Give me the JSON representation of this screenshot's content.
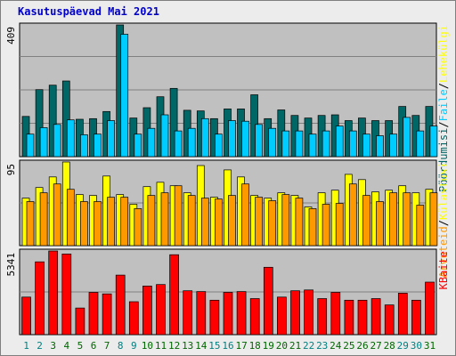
{
  "title": "Kasutuspäevad Mai 2021",
  "colors": {
    "pageviews": "#006666",
    "hits": "#00ccff",
    "visits": "#ffff00",
    "sites": "#ff9900",
    "kbytes": "#ff0000",
    "weekday_label": "#006600",
    "weekend_label": "#008080",
    "panel_bg": "#c0c0c0",
    "grid": "#808080"
  },
  "chart_data": [
    {
      "type": "bar",
      "id": "requests",
      "max_label": "409",
      "ylim": [
        0,
        409
      ],
      "series": [
        {
          "name": "Lehekülgi",
          "key": "pageviews",
          "values": [
            125,
            208,
            222,
            235,
            116,
            118,
            140,
            409,
            120,
            152,
            186,
            212,
            144,
            142,
            118,
            148,
            148,
            192,
            118,
            145,
            128,
            120,
            128,
            130,
            112,
            120,
            112,
            112,
            156,
            128,
            156
          ]
        },
        {
          "name": "Faile",
          "key": "hits",
          "values": [
            70,
            90,
            100,
            114,
            68,
            70,
            112,
            380,
            70,
            88,
            130,
            80,
            88,
            118,
            70,
            112,
            110,
            100,
            88,
            80,
            80,
            70,
            80,
            95,
            80,
            70,
            65,
            70,
            122,
            80,
            95
          ]
        }
      ],
      "legend": [
        {
          "text": "Pöördumisi",
          "key": "pageviews"
        },
        {
          "text": "/",
          "key": "sep"
        },
        {
          "text": "Faile",
          "key": "hits"
        },
        {
          "text": "/",
          "key": "sep"
        },
        {
          "text": "Lehekülgi",
          "key": "visits"
        }
      ]
    },
    {
      "type": "bar",
      "id": "visits",
      "max_label": "95",
      "ylim": [
        0,
        95
      ],
      "series": [
        {
          "name": "Külastusi",
          "key": "visits",
          "values": [
            54,
            66,
            78,
            95,
            58,
            57,
            79,
            58,
            47,
            67,
            72,
            68,
            60,
            91,
            55,
            86,
            78,
            57,
            54,
            60,
            57,
            44,
            60,
            63,
            81,
            75,
            61,
            63,
            68,
            60,
            64
          ]
        },
        {
          "name": "Arvuteid",
          "key": "sites",
          "values": [
            50,
            60,
            70,
            64,
            50,
            50,
            55,
            55,
            42,
            57,
            60,
            68,
            57,
            54,
            53,
            57,
            70,
            55,
            51,
            58,
            54,
            42,
            47,
            48,
            70,
            57,
            50,
            60,
            60,
            46,
            60
          ]
        }
      ],
      "legend": [
        {
          "text": "Arvuteid",
          "key": "sites"
        },
        {
          "text": "/",
          "key": "sep"
        },
        {
          "text": "Külastusi",
          "key": "visits"
        }
      ]
    },
    {
      "type": "bar",
      "id": "kbytes",
      "max_label": "5341",
      "ylim": [
        0,
        5341
      ],
      "series": [
        {
          "name": "KBaite",
          "key": "kbytes",
          "values": [
            2400,
            4650,
            5341,
            5150,
            1700,
            2700,
            2600,
            3800,
            2100,
            3100,
            3200,
            5100,
            2800,
            2750,
            2200,
            2700,
            2750,
            2300,
            4300,
            2400,
            2800,
            2850,
            2300,
            2700,
            2200,
            2200,
            2300,
            1900,
            2650,
            2200,
            3350
          ]
        }
      ],
      "legend": [
        {
          "text": "KBaite",
          "key": "kbytes"
        }
      ]
    }
  ],
  "days": [
    "1",
    "2",
    "3",
    "4",
    "5",
    "6",
    "7",
    "8",
    "9",
    "10",
    "11",
    "12",
    "13",
    "14",
    "15",
    "16",
    "17",
    "18",
    "19",
    "20",
    "21",
    "22",
    "23",
    "24",
    "25",
    "26",
    "27",
    "28",
    "29",
    "30",
    "31"
  ],
  "weekend_days": [
    1,
    2,
    8,
    9,
    15,
    16,
    22,
    23,
    29,
    30
  ]
}
